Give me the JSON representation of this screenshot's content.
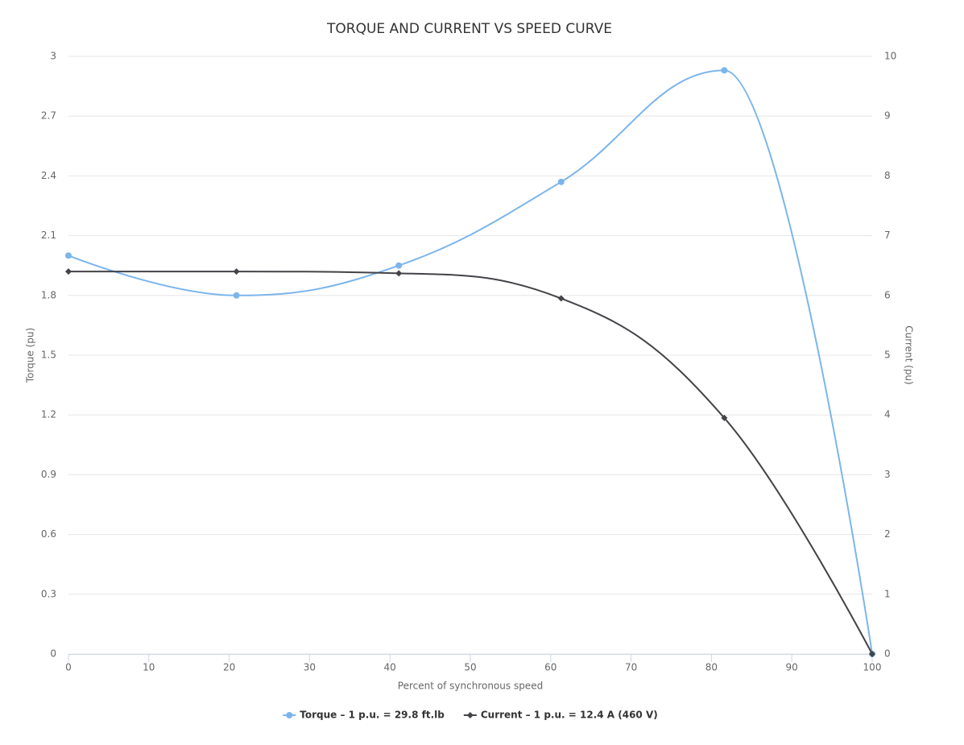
{
  "chart_data": {
    "type": "line",
    "curve": "spline",
    "title": "TORQUE AND CURRENT VS SPEED CURVE",
    "x_label": "Percent of synchronous speed",
    "y_label": "Torque (pu)",
    "y2_label": "Current (pu)",
    "x": [
      0,
      20.9,
      41.1,
      61.3,
      81.6,
      100
    ],
    "series": [
      {
        "name": "Torque – 1 p.u. = 29.8 ft.lb",
        "color": "#7cb5ec",
        "marker": "circle",
        "axis": "y",
        "values": [
          2.0,
          1.8,
          1.95,
          2.37,
          2.93,
          0
        ]
      },
      {
        "name": "Current – 1 p.u. = 12.4 A (460 V)",
        "color": "#434348",
        "marker": "diamond",
        "axis": "y2",
        "values": [
          6.4,
          6.4,
          6.37,
          5.95,
          3.95,
          0
        ]
      }
    ],
    "xlim": [
      0,
      100
    ],
    "xticks": [
      0,
      10,
      20,
      30,
      40,
      50,
      60,
      70,
      80,
      90,
      100
    ],
    "ylim": [
      0,
      3
    ],
    "yticks": [
      0,
      0.3,
      0.6,
      0.9,
      1.2,
      1.5,
      1.8,
      2.1,
      2.4,
      2.7,
      3
    ],
    "y2lim": [
      0,
      10
    ],
    "y2ticks": [
      0,
      1,
      2,
      3,
      4,
      5,
      6,
      7,
      8,
      9,
      10
    ],
    "grid": true,
    "legend": "bottom"
  }
}
